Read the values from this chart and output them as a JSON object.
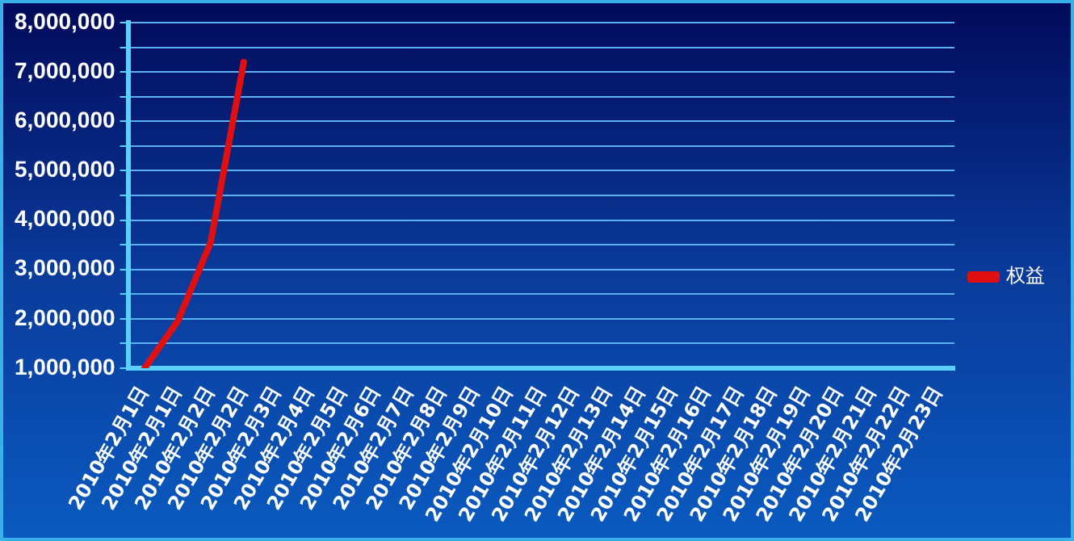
{
  "chart_data": {
    "type": "line",
    "categories": [
      "2010年2月1日",
      "2010年2月1日",
      "2010年2月2日",
      "2010年2月2日",
      "2010年2月3日",
      "2010年2月4日",
      "2010年2月5日",
      "2010年2月6日",
      "2010年2月7日",
      "2010年2月8日",
      "2010年2月9日",
      "2010年2月10日",
      "2010年2月11日",
      "2010年2月12日",
      "2010年2月13日",
      "2010年2月14日",
      "2010年2月15日",
      "2010年2月16日",
      "2010年2月17日",
      "2010年2月18日",
      "2010年2月19日",
      "2010年2月20日",
      "2010年2月21日",
      "2010年2月22日",
      "2010年2月23日"
    ],
    "series": [
      {
        "name": "权益",
        "color": "#e01010",
        "values": [
          1000000,
          1950000,
          3550000,
          7200000,
          null,
          null,
          null,
          null,
          null,
          null,
          null,
          null,
          null,
          null,
          null,
          null,
          null,
          null,
          null,
          null,
          null,
          null,
          null,
          null,
          null
        ]
      }
    ],
    "ylim": [
      1000000,
      8000000
    ],
    "yticks": [
      {
        "value": 1000000,
        "label": "1,000,000"
      },
      {
        "value": 1500000,
        "label": null
      },
      {
        "value": 2000000,
        "label": "2,000,000"
      },
      {
        "value": 2500000,
        "label": null
      },
      {
        "value": 3000000,
        "label": "3,000,000"
      },
      {
        "value": 3500000,
        "label": null
      },
      {
        "value": 4000000,
        "label": "4,000,000"
      },
      {
        "value": 4500000,
        "label": null
      },
      {
        "value": 5000000,
        "label": "5,000,000"
      },
      {
        "value": 5500000,
        "label": null
      },
      {
        "value": 6000000,
        "label": "6,000,000"
      },
      {
        "value": 6500000,
        "label": null
      },
      {
        "value": 7000000,
        "label": "7,000,000"
      },
      {
        "value": 7500000,
        "label": null
      },
      {
        "value": 8000000,
        "label": "8,000,000"
      }
    ],
    "grid": "y",
    "legend": "right",
    "marker": "none",
    "line_style": "solid"
  }
}
